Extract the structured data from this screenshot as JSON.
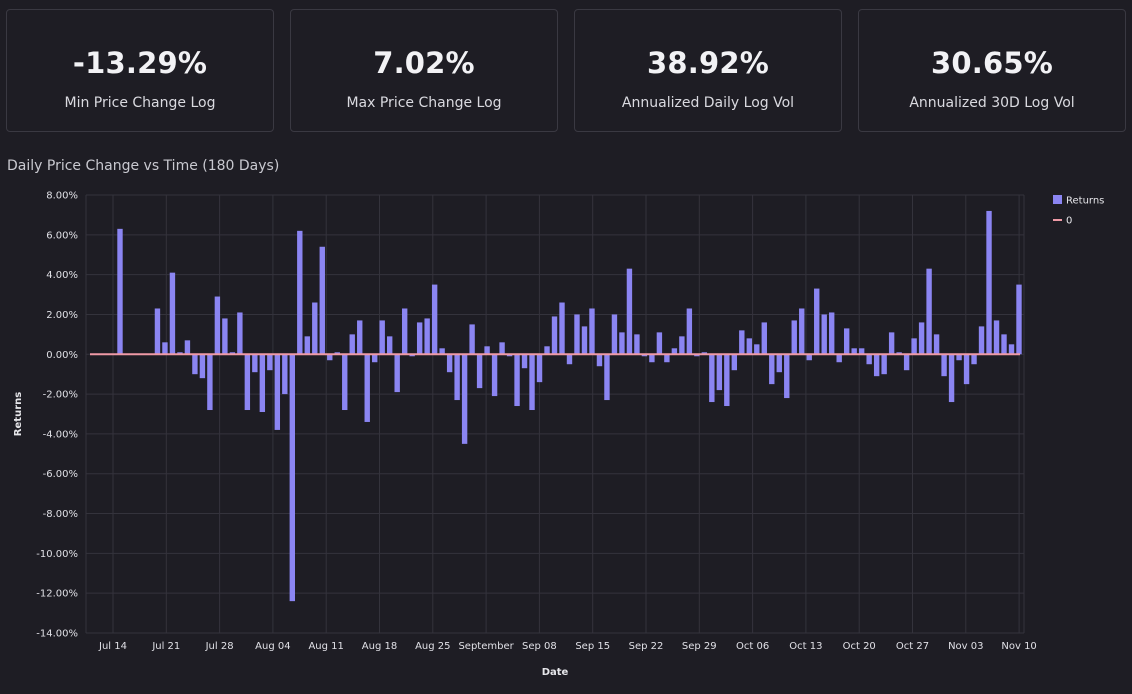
{
  "metrics": [
    {
      "value": "-13.29%",
      "label": "Min Price Change Log"
    },
    {
      "value": "7.02%",
      "label": "Max Price Change Log"
    },
    {
      "value": "38.92%",
      "label": "Annualized Daily Log Vol"
    },
    {
      "value": "30.65%",
      "label": "Annualized 30D Log Vol"
    }
  ],
  "chart_title": "Daily Price Change vs Time (180 Days)",
  "colors": {
    "bar": "#8b85f2",
    "zero_line": "#ef9aa6",
    "grid": "#34333c",
    "background": "#1e1d24"
  },
  "chart_data": {
    "type": "bar",
    "xlabel": "Date",
    "ylabel": "Returns",
    "ylim": [
      -14,
      8
    ],
    "y_ticks": [
      "8.00%",
      "6.00%",
      "4.00%",
      "2.00%",
      "0.00%",
      "-2.00%",
      "-4.00%",
      "-6.00%",
      "-8.00%",
      "-10.00%",
      "-12.00%",
      "-14.00%"
    ],
    "x_ticks": [
      "Jul 14",
      "Jul 21",
      "Jul 28",
      "Aug 04",
      "Aug 11",
      "Aug 18",
      "Aug 25",
      "September",
      "Sep 08",
      "Sep 15",
      "Sep 22",
      "Sep 29",
      "Oct 06",
      "Oct 13",
      "Oct 20",
      "Oct 27",
      "Nov 03",
      "Nov 10"
    ],
    "grid": true,
    "legend_position": "top-right",
    "legend": [
      {
        "name": "Returns",
        "kind": "bar"
      },
      {
        "name": "0",
        "kind": "line"
      }
    ],
    "series": [
      {
        "name": "Returns",
        "values": [
          6.3,
          0,
          0,
          0,
          0,
          2.3,
          0.6,
          4.1,
          0.1,
          0.7,
          -1.0,
          -1.2,
          -2.8,
          2.9,
          1.8,
          0.1,
          2.1,
          -2.8,
          -0.9,
          -2.9,
          -0.8,
          -3.8,
          -2.0,
          -12.4,
          6.2,
          0.9,
          2.6,
          5.4,
          -0.3,
          0.1,
          -2.8,
          1.0,
          1.7,
          -3.4,
          -0.4,
          1.7,
          0.9,
          -1.9,
          2.3,
          -0.1,
          1.6,
          1.8,
          3.5,
          0.3,
          -0.9,
          -2.3,
          -4.5,
          1.5,
          -1.7,
          0.4,
          -2.1,
          0.6,
          -0.1,
          -2.6,
          -0.7,
          -2.8,
          -1.4,
          0.4,
          1.9,
          2.6,
          -0.5,
          2.0,
          1.4,
          2.3,
          -0.6,
          -2.3,
          2.0,
          1.1,
          4.3,
          1.0,
          -0.1,
          -0.4,
          1.1,
          -0.4,
          0.3,
          0.9,
          2.3,
          -0.1,
          0.1,
          -2.4,
          -1.8,
          -2.6,
          -0.8,
          1.2,
          0.8,
          0.5,
          1.6,
          -1.5,
          -0.9,
          -2.2,
          1.7,
          2.3,
          -0.3,
          3.3,
          2.0,
          2.1,
          -0.4,
          1.3,
          0.3,
          0.3,
          -0.5,
          -1.1,
          -1.0,
          1.1,
          0.1,
          -0.8,
          0.8,
          1.6,
          4.3,
          1.0,
          -1.1,
          -2.4,
          -0.3,
          -1.5,
          -0.5,
          1.4,
          7.2,
          1.7,
          1.0,
          0.5,
          3.5
        ]
      }
    ]
  }
}
